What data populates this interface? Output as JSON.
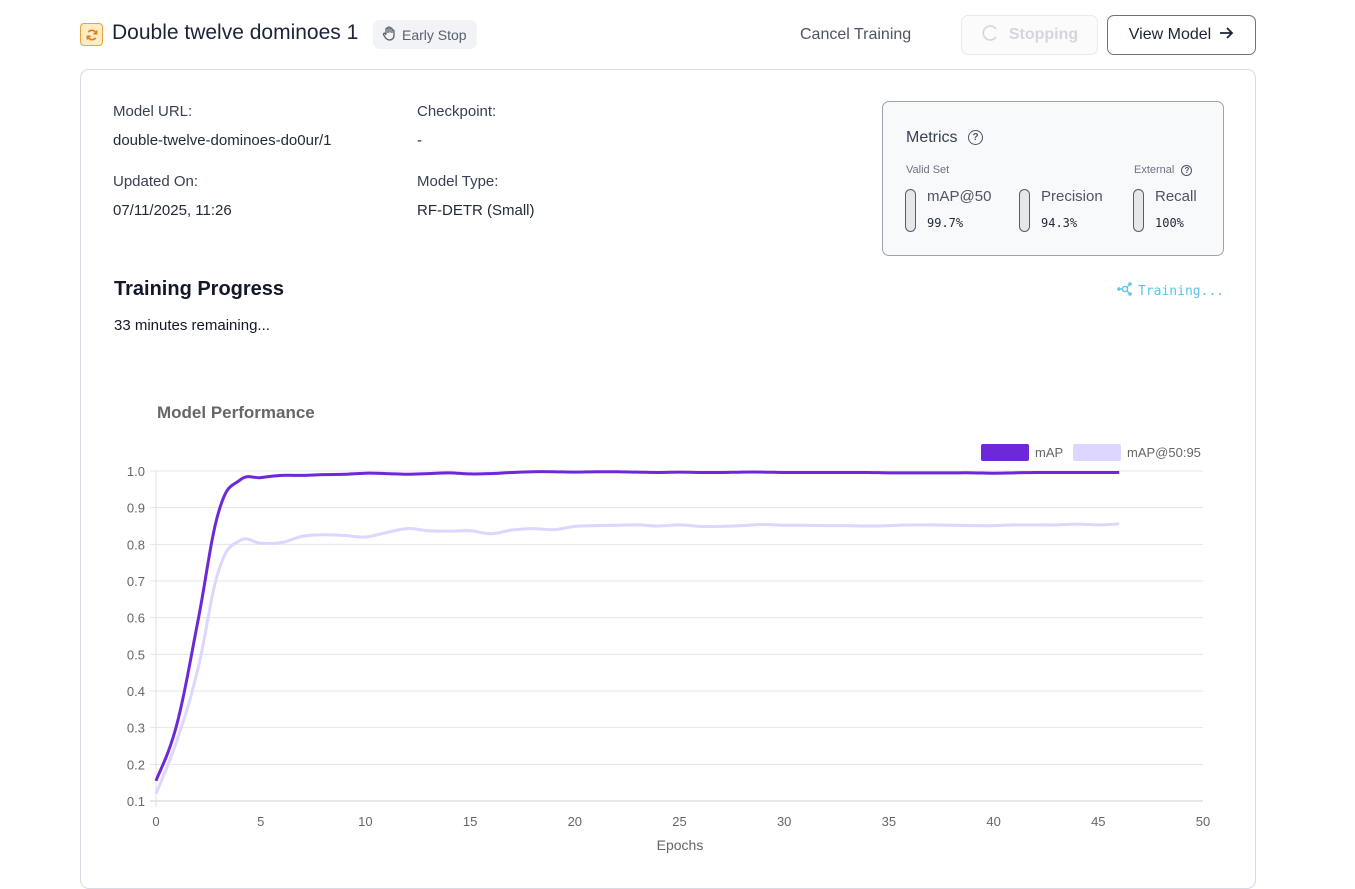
{
  "header": {
    "project_icon": "sync-icon",
    "title": "Double twelve dominoes 1",
    "badge": {
      "icon": "hand-stop-icon",
      "label": "Early Stop"
    },
    "cancel_label": "Cancel Training",
    "stopping_label": "Stopping",
    "stopping_icon": "spinner-icon",
    "view_model_label": "View Model",
    "view_model_icon": "arrow-right-icon"
  },
  "details": {
    "model_url_label": "Model URL:",
    "model_url": "double-twelve-dominoes-do0ur/1",
    "checkpoint_label": "Checkpoint:",
    "checkpoint": "-",
    "updated_label": "Updated On:",
    "updated": "07/11/2025, 11:26",
    "model_type_label": "Model Type:",
    "model_type": "RF-DETR (Small)"
  },
  "metrics": {
    "title": "Metrics",
    "valid_set_label": "Valid Set",
    "external_label": "External",
    "items": [
      {
        "name": "mAP@50",
        "value": "99.7%"
      },
      {
        "name": "Precision",
        "value": "94.3%"
      },
      {
        "name": "Recall",
        "value": "100%"
      }
    ]
  },
  "training": {
    "title": "Training Progress",
    "remaining": "33 minutes remaining...",
    "status": "Training...",
    "status_icon": "network-icon",
    "status_color": "#60c3ec"
  },
  "chart_data": {
    "type": "line",
    "title": "Model Performance",
    "xlabel": "Epochs",
    "ylabel": "",
    "xlim": [
      0,
      50
    ],
    "ylim": [
      0.1,
      1.0
    ],
    "xticks": [
      0,
      5,
      10,
      15,
      20,
      25,
      30,
      35,
      40,
      45,
      50
    ],
    "yticks": [
      0.1,
      0.2,
      0.3,
      0.4,
      0.5,
      0.6,
      0.7,
      0.8,
      0.9,
      1.0
    ],
    "grid": true,
    "legend_position": "top-right",
    "x": [
      0,
      1,
      2,
      3,
      4,
      5,
      6,
      7,
      8,
      9,
      10,
      11,
      12,
      13,
      14,
      15,
      16,
      17,
      18,
      19,
      20,
      21,
      22,
      23,
      24,
      25,
      26,
      27,
      28,
      29,
      30,
      31,
      32,
      33,
      34,
      35,
      36,
      37,
      38,
      39,
      40,
      41,
      42,
      43,
      44,
      45,
      46
    ],
    "series": [
      {
        "name": "mAP",
        "color": "#6d28d9",
        "values": [
          0.155,
          0.31,
          0.59,
          0.89,
          0.975,
          0.982,
          0.988,
          0.988,
          0.99,
          0.991,
          0.994,
          0.993,
          0.991,
          0.993,
          0.995,
          0.992,
          0.993,
          0.996,
          0.998,
          0.998,
          0.997,
          0.998,
          0.998,
          0.997,
          0.996,
          0.997,
          0.996,
          0.996,
          0.997,
          0.997,
          0.996,
          0.996,
          0.996,
          0.996,
          0.996,
          0.995,
          0.995,
          0.995,
          0.995,
          0.995,
          0.994,
          0.995,
          0.996,
          0.996,
          0.996,
          0.996,
          0.996
        ]
      },
      {
        "name": "mAP@50:95",
        "color": "#ddd6fe",
        "values": [
          0.12,
          0.265,
          0.46,
          0.73,
          0.81,
          0.803,
          0.805,
          0.822,
          0.826,
          0.824,
          0.82,
          0.832,
          0.843,
          0.837,
          0.836,
          0.837,
          0.829,
          0.839,
          0.843,
          0.84,
          0.849,
          0.851,
          0.852,
          0.853,
          0.85,
          0.853,
          0.849,
          0.849,
          0.851,
          0.854,
          0.852,
          0.852,
          0.851,
          0.851,
          0.85,
          0.851,
          0.853,
          0.853,
          0.852,
          0.851,
          0.851,
          0.853,
          0.853,
          0.853,
          0.855,
          0.853,
          0.856
        ]
      }
    ]
  }
}
